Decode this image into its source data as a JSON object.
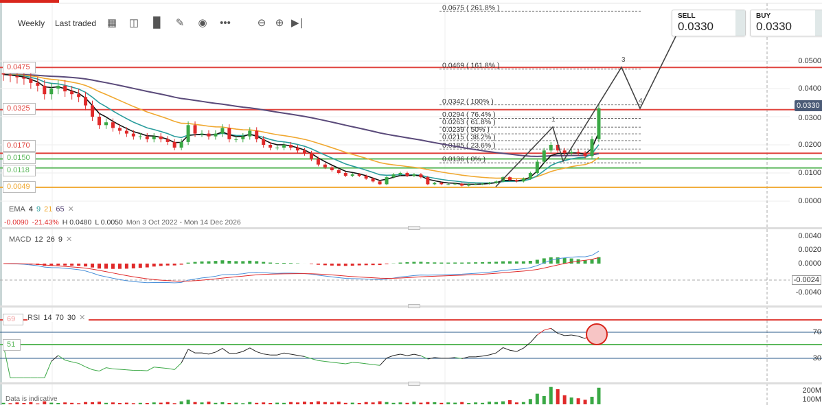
{
  "toolbar": {
    "interval": "Weekly",
    "price_type": "Last traded",
    "icons": [
      "calendar-icon",
      "chart-type-icon",
      "indicators-icon",
      "draw-pencil-icon",
      "eye-icon",
      "more-icon",
      "zoom-out-icon",
      "zoom-in-icon",
      "skip-to-end-icon"
    ]
  },
  "trade": {
    "sell_label": "SELL",
    "sell_price": "0.0330",
    "buy_label": "BUY",
    "buy_price": "0.0330"
  },
  "price_axis": [
    "0.0500",
    "0.0400",
    "0.0300",
    "0.0200",
    "0.0100",
    "0.0000"
  ],
  "current_price": "0.0330",
  "levels": [
    {
      "label": "0.0475",
      "value": 0.0475,
      "color": "#e0443e"
    },
    {
      "label": "0.0325",
      "value": 0.0325,
      "color": "#e0443e"
    },
    {
      "label": "0.0170",
      "value": 0.017,
      "color": "#e0443e"
    },
    {
      "label": "0.0150",
      "value": 0.015,
      "color": "#5cb85c"
    },
    {
      "label": "0.0118",
      "value": 0.0118,
      "color": "#5cb85c"
    },
    {
      "label": "0.0049",
      "value": 0.0049,
      "color": "#f0a830"
    }
  ],
  "fib": [
    {
      "label": "0.0675 ( 261.8% )",
      "value": 0.0675
    },
    {
      "label": "0.0469 ( 161.8% )",
      "value": 0.0469
    },
    {
      "label": "0.0342 ( 100% )",
      "value": 0.0342
    },
    {
      "label": "0.0294 ( 76.4% )",
      "value": 0.0294
    },
    {
      "label": "0.0263 ( 61.8% )",
      "value": 0.0263
    },
    {
      "label": "0.0239 ( 50% )",
      "value": 0.0239
    },
    {
      "label": "0.0215 ( 38.2% )",
      "value": 0.0215
    },
    {
      "label": "0.0185 ( 23.6% )",
      "value": 0.0185
    },
    {
      "label": "0.0136 ( 0% )",
      "value": 0.0136
    }
  ],
  "waves": [
    "1",
    "3",
    "4"
  ],
  "ema": {
    "name": "EMA",
    "p1": "4",
    "p2": "9",
    "p3": "21",
    "p4": "65",
    "colors": [
      "#111111",
      "#2a9d9d",
      "#f0a830",
      "#5a4a7a"
    ]
  },
  "stats": {
    "change": "-0.0090",
    "change_pct": "-21.43%",
    "high": "H 0.0480",
    "low": "L 0.0050",
    "range": "Mon 3 Oct 2022 - Mon 14 Dec 2026"
  },
  "macd": {
    "name": "MACD",
    "p1": "12",
    "p2": "26",
    "p3": "9",
    "axis": [
      "0.0040",
      "0.0020",
      "0.0000",
      "-0.0040"
    ],
    "crosshair": "-0.0024"
  },
  "rsi": {
    "name": "RSI",
    "p1": "14",
    "p2": "70",
    "p3": "30",
    "axis": [
      "70",
      "30"
    ],
    "level_label": "51",
    "upper_label": "69"
  },
  "volume": {
    "axis": [
      "200M",
      "100M"
    ],
    "note": "Data is indicative",
    "values_m": [
      20,
      15,
      25,
      18,
      30,
      12,
      40,
      22,
      18,
      25,
      20,
      15,
      30,
      28,
      35,
      20,
      25,
      18,
      22,
      15,
      20,
      18,
      25,
      22,
      30,
      15,
      40,
      60,
      30,
      25,
      35,
      20,
      28,
      18,
      22,
      15,
      30,
      20,
      25,
      18,
      22,
      20,
      30,
      25,
      35,
      28,
      40,
      30,
      25,
      35,
      20,
      22,
      18,
      30,
      25,
      40,
      30,
      20,
      25,
      20,
      35,
      22,
      30,
      28,
      20,
      25,
      22,
      30,
      18,
      25,
      20,
      35,
      30,
      40,
      55,
      25,
      30,
      70,
      140,
      110,
      230,
      200,
      120,
      90,
      80,
      60,
      100,
      220
    ]
  },
  "chart_data": {
    "type": "candlestick",
    "interval": "Weekly",
    "ylim": [
      0,
      0.05
    ],
    "closes": [
      0.045,
      0.0445,
      0.044,
      0.0435,
      0.042,
      0.041,
      0.038,
      0.04,
      0.041,
      0.039,
      0.038,
      0.037,
      0.034,
      0.03,
      0.027,
      0.028,
      0.026,
      0.025,
      0.024,
      0.023,
      0.023,
      0.022,
      0.023,
      0.022,
      0.021,
      0.019,
      0.021,
      0.027,
      0.024,
      0.024,
      0.023,
      0.024,
      0.026,
      0.022,
      0.022,
      0.023,
      0.025,
      0.022,
      0.02,
      0.019,
      0.019,
      0.02,
      0.019,
      0.018,
      0.017,
      0.015,
      0.013,
      0.012,
      0.011,
      0.01,
      0.009,
      0.0095,
      0.009,
      0.008,
      0.007,
      0.006,
      0.0085,
      0.0095,
      0.01,
      0.009,
      0.0095,
      0.0085,
      0.006,
      0.0065,
      0.006,
      0.006,
      0.0062,
      0.0055,
      0.006,
      0.006,
      0.0062,
      0.0065,
      0.007,
      0.0085,
      0.0075,
      0.007,
      0.008,
      0.01,
      0.014,
      0.018,
      0.02,
      0.018,
      0.017,
      0.0175,
      0.017,
      0.016,
      0.022,
      0.033
    ],
    "colors": {
      "up": "#3aa845",
      "down": "#e02a2a"
    }
  }
}
